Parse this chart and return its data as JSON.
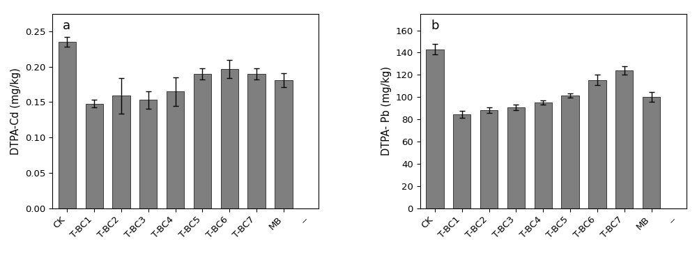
{
  "categories": [
    "CK",
    "T-BC1",
    "T-BC2",
    "T-BC3",
    "T-BC4",
    "T-BC5",
    "T-BC6",
    "T-BC7",
    "MB",
    "--"
  ],
  "chart_a": {
    "label": "a",
    "ylabel": "DTPA-Cd (mg/kg)",
    "values": [
      0.235,
      0.148,
      0.159,
      0.153,
      0.165,
      0.19,
      0.197,
      0.19,
      0.181
    ],
    "errors": [
      0.007,
      0.005,
      0.025,
      0.012,
      0.02,
      0.008,
      0.013,
      0.008,
      0.01
    ],
    "ylim": [
      0,
      0.275
    ],
    "yticks": [
      0.0,
      0.05,
      0.1,
      0.15,
      0.2,
      0.25
    ]
  },
  "chart_b": {
    "label": "b",
    "ylabel": "DTPA- Pb (mg/kg)",
    "values": [
      143,
      84.5,
      88.5,
      91,
      95,
      101.5,
      115.5,
      124,
      100
    ],
    "errors": [
      4.5,
      3.0,
      2.5,
      2.5,
      2.0,
      2.0,
      4.5,
      3.5,
      4.5
    ],
    "ylim": [
      0,
      175
    ],
    "yticks": [
      0,
      20,
      40,
      60,
      80,
      100,
      120,
      140,
      160
    ]
  },
  "bar_color": "#7f7f7f",
  "bar_edgecolor": "#3a3a3a",
  "bar_width": 0.65,
  "errorbar_color": "black",
  "errorbar_capsize": 3,
  "errorbar_linewidth": 1.0,
  "tick_label_rotation": 45,
  "background_color": "white",
  "panel_label_fontsize": 13,
  "ylabel_fontsize": 10.5,
  "tick_fontsize": 9.5
}
